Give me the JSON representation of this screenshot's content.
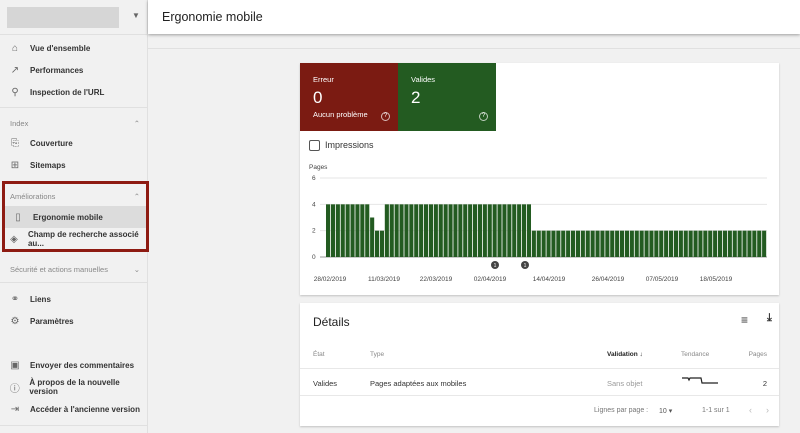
{
  "header": {
    "title": "Ergonomie mobile"
  },
  "sidebar": {
    "items_top": [
      {
        "label": "Vue d'ensemble",
        "icon": "home-icon"
      },
      {
        "label": "Performances",
        "icon": "trending-up-icon"
      },
      {
        "label": "Inspection de l'URL",
        "icon": "search-icon"
      }
    ],
    "index": {
      "label": "Index",
      "items": [
        {
          "label": "Couverture",
          "icon": "file-copy-icon"
        },
        {
          "label": "Sitemaps",
          "icon": "sitemap-icon"
        }
      ]
    },
    "ameliorations": {
      "label": "Améliorations",
      "items": [
        {
          "label": "Ergonomie mobile",
          "icon": "smartphone-icon",
          "selected": true
        },
        {
          "label": "Champ de recherche associé au...",
          "icon": "layers-icon"
        }
      ]
    },
    "securite": {
      "label": "Sécurité et actions manuelles"
    },
    "items_mid": [
      {
        "label": "Liens",
        "icon": "links-icon"
      },
      {
        "label": "Paramètres",
        "icon": "settings-icon"
      }
    ],
    "items_bottom": [
      {
        "label": "Envoyer des commentaires",
        "icon": "feedback-icon"
      },
      {
        "label": "À propos de la nouvelle version",
        "icon": "info-icon"
      },
      {
        "label": "Accéder à l'ancienne version",
        "icon": "exit-icon"
      }
    ]
  },
  "summary": {
    "error": {
      "label": "Erreur",
      "count": "0",
      "sub": "Aucun problème",
      "color": "#7b1b12"
    },
    "valid": {
      "label": "Valides",
      "count": "2",
      "color": "#235b21"
    },
    "impressions_label": "Impressions"
  },
  "chart_data": {
    "type": "bar",
    "ylabel": "Pages",
    "ylim": [
      0,
      6
    ],
    "yticks": [
      "0",
      "2",
      "4",
      "6"
    ],
    "xticks": [
      "28/02/2019",
      "11/03/2019",
      "22/03/2019",
      "02/04/2019",
      "14/04/2019",
      "26/04/2019",
      "07/05/2019",
      "18/05/2019"
    ],
    "annotations": [
      "1",
      "1"
    ],
    "color": "#235b21",
    "values": [
      4,
      4,
      4,
      4,
      4,
      4,
      4,
      4,
      4,
      3,
      2,
      2,
      4,
      4,
      4,
      4,
      4,
      4,
      4,
      4,
      4,
      4,
      4,
      4,
      4,
      4,
      4,
      4,
      4,
      4,
      4,
      4,
      4,
      4,
      4,
      4,
      4,
      4,
      4,
      4,
      4,
      4,
      2,
      2,
      2,
      2,
      2,
      2,
      2,
      2,
      2,
      2,
      2,
      2,
      2,
      2,
      2,
      2,
      2,
      2,
      2,
      2,
      2,
      2,
      2,
      2,
      2,
      2,
      2,
      2,
      2,
      2,
      2,
      2,
      2,
      2,
      2,
      2,
      2,
      2,
      2,
      2,
      2,
      2,
      2,
      2,
      2,
      2,
      2,
      2
    ]
  },
  "details": {
    "title": "Détails",
    "columns": {
      "etat": "État",
      "type": "Type",
      "validation": "Validation",
      "tendance": "Tendance",
      "pages": "Pages"
    },
    "rows": [
      {
        "etat": "Valides",
        "type": "Pages adaptées aux mobiles",
        "validation": "Sans objet",
        "pages": "2"
      }
    ],
    "pagination": {
      "label": "Lignes par page :",
      "value": "10",
      "range": "1-1 sur 1"
    }
  }
}
